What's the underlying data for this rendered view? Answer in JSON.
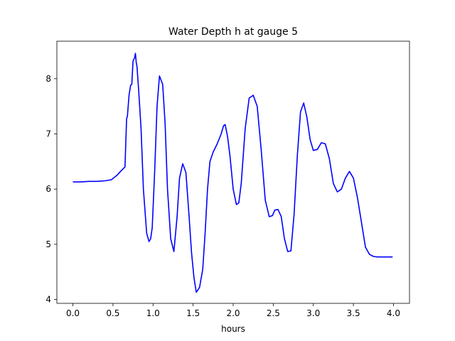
{
  "chart_data": {
    "type": "line",
    "title": "Water Depth h at gauge 5",
    "xlabel": "hours",
    "ylabel": "",
    "xlim": [
      -0.2,
      4.2
    ],
    "ylim": [
      3.93,
      8.68
    ],
    "xticks": [
      0.0,
      0.5,
      1.0,
      1.5,
      2.0,
      2.5,
      3.0,
      3.5,
      4.0
    ],
    "xtick_labels": [
      "0.0",
      "0.5",
      "1.0",
      "1.5",
      "2.0",
      "2.5",
      "3.0",
      "3.5",
      "4.0"
    ],
    "yticks": [
      4,
      5,
      6,
      7,
      8
    ],
    "ytick_labels": [
      "4",
      "5",
      "6",
      "7",
      "8"
    ],
    "grid": false,
    "series": [
      {
        "color": "#0000ff",
        "x": [
          0.0,
          0.1,
          0.2,
          0.3,
          0.4,
          0.48,
          0.55,
          0.6,
          0.65,
          0.67,
          0.68,
          0.7,
          0.72,
          0.735,
          0.75,
          0.77,
          0.78,
          0.79,
          0.8,
          0.82,
          0.85,
          0.88,
          0.92,
          0.95,
          0.97,
          0.99,
          1.02,
          1.05,
          1.08,
          1.12,
          1.15,
          1.18,
          1.22,
          1.26,
          1.3,
          1.33,
          1.37,
          1.41,
          1.45,
          1.48,
          1.51,
          1.54,
          1.58,
          1.62,
          1.65,
          1.68,
          1.71,
          1.75,
          1.8,
          1.85,
          1.88,
          1.9,
          1.93,
          1.96,
          2.0,
          2.04,
          2.07,
          2.1,
          2.15,
          2.2,
          2.25,
          2.3,
          2.35,
          2.4,
          2.45,
          2.49,
          2.52,
          2.56,
          2.6,
          2.64,
          2.68,
          2.72,
          2.76,
          2.8,
          2.84,
          2.88,
          2.92,
          2.96,
          3.0,
          3.05,
          3.1,
          3.15,
          3.2,
          3.25,
          3.3,
          3.35,
          3.4,
          3.45,
          3.5,
          3.55,
          3.6,
          3.65,
          3.7,
          3.75,
          3.8,
          3.85,
          3.9,
          3.95,
          3.99
        ],
        "y": [
          6.13,
          6.13,
          6.14,
          6.14,
          6.15,
          6.17,
          6.25,
          6.33,
          6.4,
          7.28,
          7.32,
          7.7,
          7.88,
          7.9,
          8.32,
          8.38,
          8.46,
          8.3,
          8.22,
          7.8,
          7.1,
          6.0,
          5.2,
          5.05,
          5.1,
          5.3,
          6.3,
          7.5,
          8.05,
          7.9,
          7.2,
          6.0,
          5.1,
          4.87,
          5.5,
          6.2,
          6.46,
          6.3,
          5.5,
          4.85,
          4.4,
          4.13,
          4.22,
          4.55,
          5.2,
          6.0,
          6.5,
          6.67,
          6.82,
          7.0,
          7.15,
          7.17,
          6.95,
          6.6,
          6.0,
          5.72,
          5.75,
          6.1,
          7.1,
          7.65,
          7.7,
          7.5,
          6.7,
          5.8,
          5.5,
          5.52,
          5.62,
          5.63,
          5.5,
          5.1,
          4.87,
          4.88,
          5.55,
          6.6,
          7.4,
          7.56,
          7.3,
          6.9,
          6.7,
          6.72,
          6.84,
          6.82,
          6.55,
          6.1,
          5.95,
          6.0,
          6.2,
          6.32,
          6.2,
          5.85,
          5.4,
          4.95,
          4.82,
          4.78,
          4.77,
          4.77,
          4.77,
          4.77,
          4.77
        ]
      }
    ]
  }
}
